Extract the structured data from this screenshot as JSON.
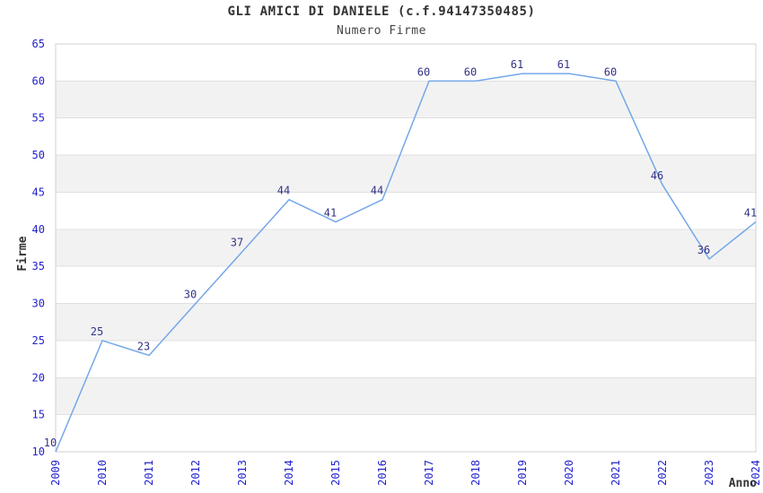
{
  "chart_data": {
    "type": "line",
    "title": "GLI AMICI DI DANIELE (c.f.94147350485)",
    "subtitle": "Numero Firme",
    "xlabel": "Anno",
    "ylabel": "Firme",
    "x": [
      2009,
      2010,
      2011,
      2012,
      2013,
      2014,
      2015,
      2016,
      2017,
      2018,
      2019,
      2020,
      2021,
      2022,
      2023,
      2024
    ],
    "series": [
      {
        "name": "Numero Firme",
        "values": [
          10,
          25,
          23,
          30,
          37,
          44,
          41,
          44,
          60,
          60,
          61,
          61,
          60,
          46,
          36,
          41
        ]
      }
    ],
    "ylim": [
      10,
      65
    ],
    "ytick_step": 5,
    "grid": "horizontal-bands",
    "legend": "none",
    "data_labels": true,
    "colors": {
      "line": "#74a7e8",
      "data_label": "#333388",
      "tick_label": "#2222cc",
      "band": "#f2f2f2",
      "gridline": "#e0e0e0",
      "border": "#d0d0d0",
      "title": "#333333",
      "axis_title": "#333333"
    }
  }
}
